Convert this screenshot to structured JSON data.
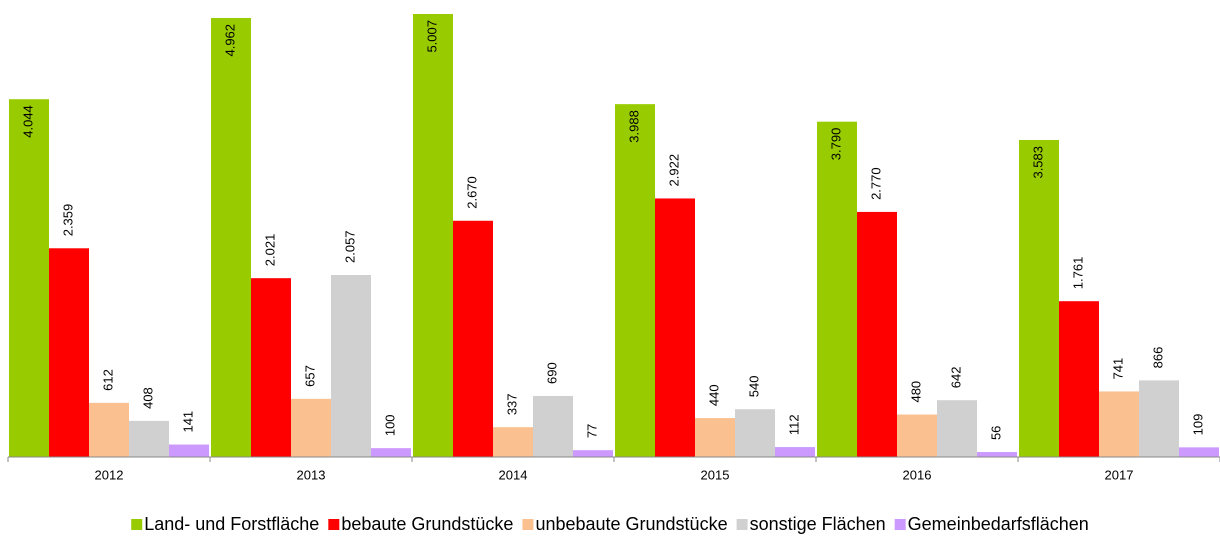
{
  "chart_data": {
    "type": "bar",
    "categories": [
      "2012",
      "2013",
      "2014",
      "2015",
      "2016",
      "2017"
    ],
    "legend": "bottom",
    "series": [
      {
        "name": "Land- und Forstfläche",
        "color": "#99cc00",
        "values": [
          4044,
          4962,
          5007,
          3988,
          3790,
          3583
        ],
        "value_labels": [
          "4.044",
          "4.962",
          "5.007",
          "3.988",
          "3.790",
          "3.583"
        ]
      },
      {
        "name": "bebaute Grundstücke",
        "color": "#ff0000",
        "values": [
          2359,
          2021,
          2670,
          2922,
          2770,
          1761
        ],
        "value_labels": [
          "2.359",
          "2.021",
          "2.670",
          "2.922",
          "2.770",
          "1.761"
        ]
      },
      {
        "name": "unbebaute Grundstücke",
        "color": "#fac090",
        "values": [
          612,
          657,
          337,
          440,
          480,
          741
        ]
      },
      {
        "name": "sonstige Flächen",
        "color": "#d0d0d0",
        "values": [
          408,
          2057,
          690,
          540,
          642,
          866
        ],
        "value_labels": [
          "408",
          "2.057",
          "690",
          "540",
          "642",
          "866"
        ]
      },
      {
        "name": "Gemeinbedarfsflächen",
        "color": "#cc99ff",
        "values": [
          141,
          100,
          77,
          112,
          56,
          109
        ]
      }
    ]
  }
}
